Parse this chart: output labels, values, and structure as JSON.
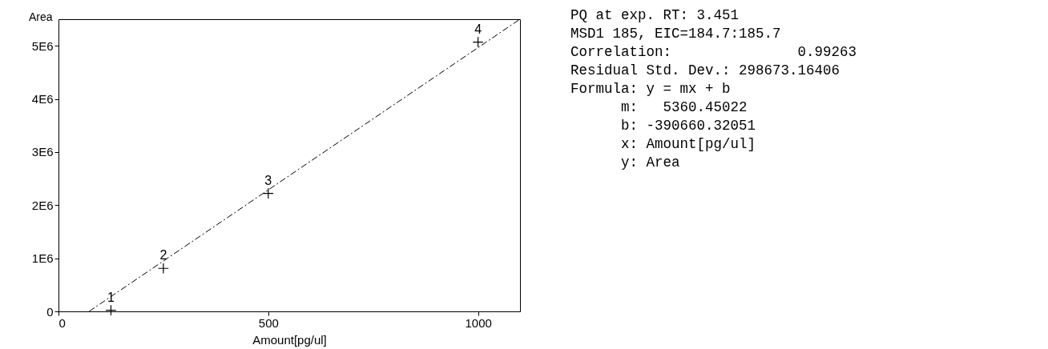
{
  "chart_data": {
    "type": "scatter",
    "xlabel": "Amount[pg/ul]",
    "ylabel": "Area",
    "xlim": [
      0,
      1100
    ],
    "ylim": [
      0,
      5500000
    ],
    "xticks": [
      0,
      500,
      1000
    ],
    "yticks": [
      0,
      {
        "value": 1000000,
        "label": "1E6"
      },
      {
        "value": 2000000,
        "label": "2E6"
      },
      {
        "value": 3000000,
        "label": "3E6"
      },
      {
        "value": 4000000,
        "label": "4E6"
      },
      {
        "value": 5000000,
        "label": "5E6"
      }
    ],
    "grid": false,
    "series": [
      {
        "marker": "cross",
        "color": "#000000",
        "x": [
          125,
          250,
          500,
          1000
        ],
        "values": [
          20000,
          810000,
          2220000,
          5070000
        ]
      },
      {
        "type": "line",
        "color": "#000000",
        "line_style": "dashed",
        "x": [
          73,
          1098
        ],
        "values": [
          0,
          5490000
        ]
      }
    ],
    "annotations": [
      {
        "text": "1",
        "x": 125,
        "y": 20000
      },
      {
        "text": "2",
        "x": 250,
        "y": 810000
      },
      {
        "text": "3",
        "x": 500,
        "y": 2220000
      },
      {
        "text": "4",
        "x": 1000,
        "y": 5070000
      },
      "PQ at exp. RT: 3.451",
      "MSD1 185, EIC=184.7:185.7",
      "Correlation:               0.99263",
      "Residual Std. Dev.: 298673.16406",
      "Formula: y = mx + b",
      "      m:   5360.45022",
      "      b: -390660.32051",
      "      x: Amount[pg/ul]",
      "      y: Area"
    ]
  }
}
